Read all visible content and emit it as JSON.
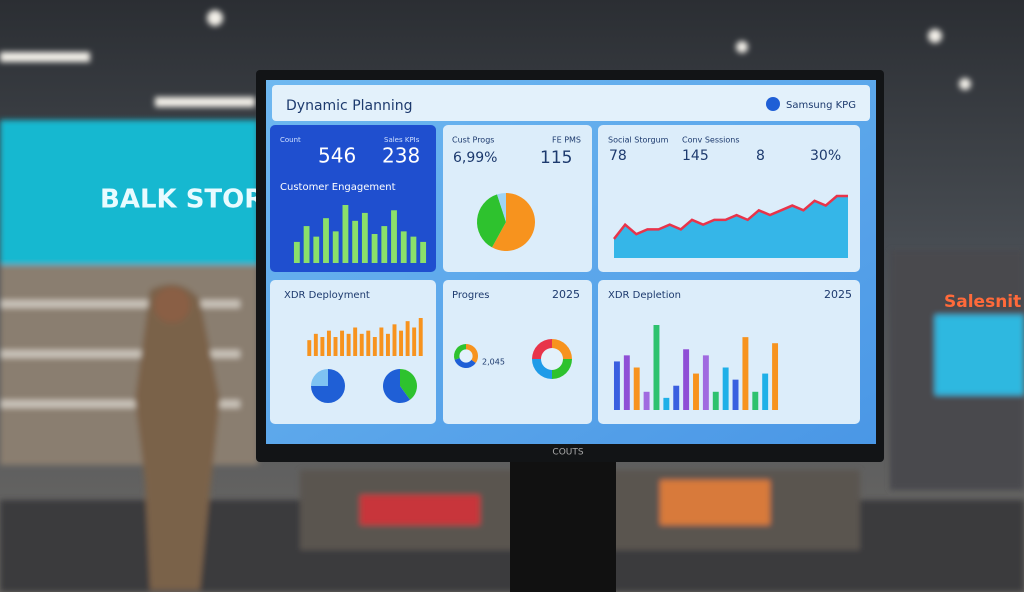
{
  "store_signs": [
    "BALK STORT",
    "Salesnit"
  ],
  "bezel_label": "COUTS",
  "screen": {
    "title": "Dynamic Planning",
    "badge": "Samsung KPG",
    "panels": [
      {
        "stats": [
          "546",
          "238"
        ],
        "stat_labels": [
          "Count",
          "Sales KPIs"
        ],
        "chart_title": "Customer Engagement",
        "bars": {
          "values": [
            8,
            14,
            10,
            17,
            12,
            22,
            16,
            19,
            11,
            14,
            20,
            12,
            10,
            8
          ],
          "color": "#8be06a"
        }
      },
      {
        "stats": [
          "6,99%",
          "115"
        ],
        "stat_labels": [
          "Cust Progs",
          "FE PMS"
        ],
        "pie": {
          "values": [
            58,
            37,
            5
          ],
          "colors": [
            "#f7931e",
            "#2ec22e",
            "#9fd4f5"
          ]
        }
      },
      {
        "stats": [
          "78",
          "145",
          "8",
          "30%"
        ],
        "stat_labels": [
          "Social Storgum",
          "Conv Sessions"
        ],
        "area": {
          "values": [
            4,
            7,
            5,
            6,
            6,
            7,
            6,
            8,
            7,
            8,
            8,
            9,
            8,
            10,
            9,
            10,
            11,
            10,
            12,
            11,
            13,
            13
          ],
          "color": "#35b6e8",
          "line_color": "#e8344a"
        }
      },
      {
        "chart_title": "XDR Deployment",
        "bars": {
          "values": [
            5,
            7,
            6,
            8,
            6,
            8,
            7,
            9,
            7,
            8,
            6,
            9,
            7,
            10,
            8,
            11,
            9,
            12
          ],
          "color": "#f7931e"
        },
        "pies": [
          {
            "values": [
              75,
              25
            ],
            "colors": [
              "#1f5fd6",
              "#7fc3f2"
            ]
          },
          {
            "values": [
              40,
              60
            ],
            "colors": [
              "#2ec22e",
              "#1f5fd6"
            ]
          }
        ]
      },
      {
        "chart_title": "Progres",
        "year": "2025",
        "stats": [
          "2,045"
        ],
        "donuts": [
          {
            "values": [
              35,
              35,
              30
            ],
            "colors": [
              "#f7931e",
              "#1f5fd6",
              "#2ec22e"
            ]
          },
          {
            "values": [
              25,
              25,
              25,
              25
            ],
            "colors": [
              "#f7931e",
              "#2ec22e",
              "#1f9be8",
              "#e8344a"
            ]
          }
        ]
      },
      {
        "chart_title": "XDR Depletion",
        "year": "2025",
        "bars": {
          "values": [
            8,
            9,
            7,
            3,
            14,
            2,
            4,
            10,
            6,
            9,
            3,
            7,
            5,
            12,
            3,
            6,
            11
          ],
          "colors": [
            "#3a5fe0",
            "#8f4fd6",
            "#f7931e",
            "#a06ae0",
            "#2ec26e",
            "#1fb0e8",
            "#3a5fe0",
            "#8f4fd6",
            "#f7931e",
            "#a06ae0",
            "#2ec26e",
            "#1fb0e8",
            "#3a5fe0",
            "#f7931e",
            "#2ec26e",
            "#1fb0e8",
            "#f7931e"
          ]
        }
      }
    ]
  }
}
